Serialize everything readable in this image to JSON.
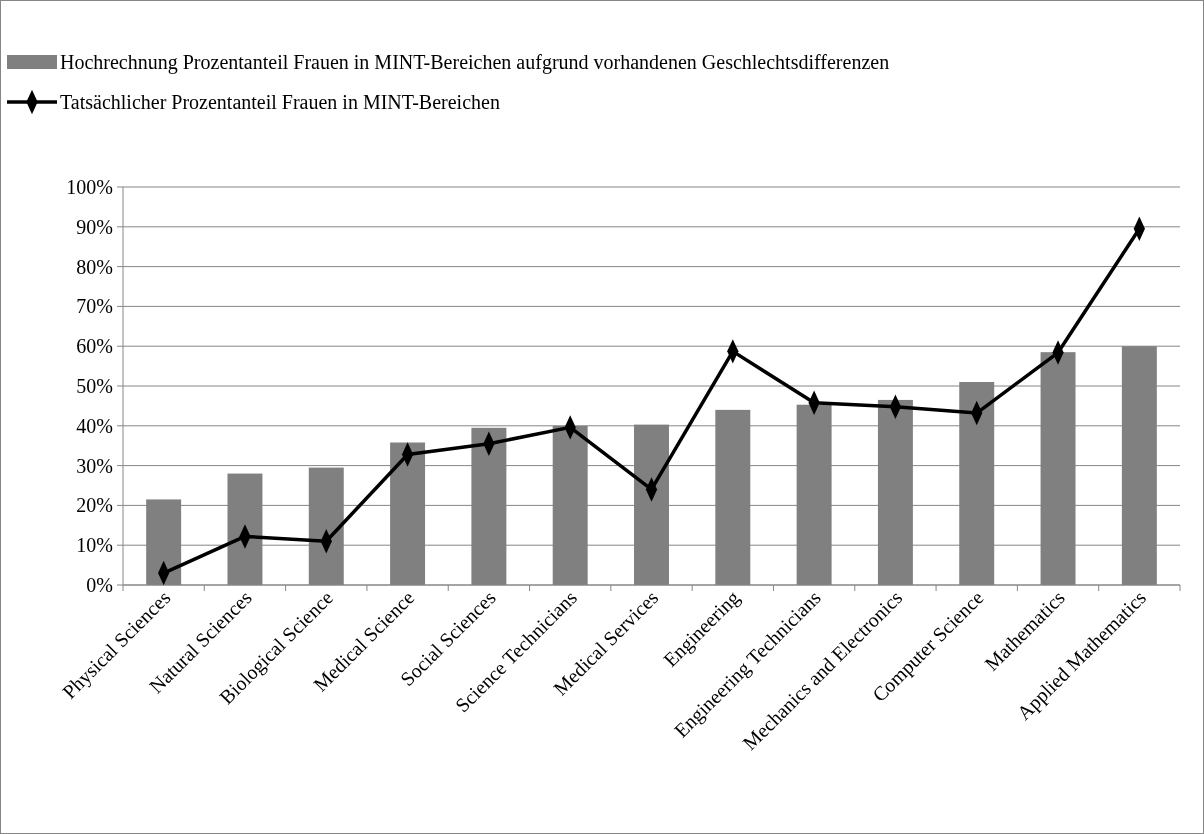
{
  "chart_data": {
    "type": "bar",
    "categories": [
      "Physical Sciences",
      "Natural Sciences",
      "Biological Science",
      "Medical Science",
      "Social Sciences",
      "Science Technicians",
      "Medical Services",
      "Engineering",
      "Engineering Technicians",
      "Mechanics and Electronics",
      "Computer Science",
      "Mathematics",
      "Applied Mathematics"
    ],
    "series": [
      {
        "name": "Hochrechnung Prozentanteil Frauen in MINT-Bereichen aufgrund vorhandenen Geschlechtsdifferenzen",
        "color": "#808080",
        "values": [
          21.5,
          28,
          29.5,
          35.8,
          39.5,
          40,
          40.3,
          44,
          45.3,
          46.5,
          51,
          58.5,
          60
        ]
      },
      {
        "name": "Tatsächlicher Prozentanteil Frauen in MINT-Bereichen",
        "type": "line",
        "color": "#000000",
        "marker": "diamond",
        "values": [
          3,
          12.2,
          11,
          32.8,
          35.5,
          39.6,
          24,
          58.7,
          45.8,
          44.8,
          43.2,
          58.4,
          89.5
        ]
      }
    ],
    "ylim": [
      0,
      100
    ],
    "yticks": [
      {
        "value": 0,
        "label": "0%"
      },
      {
        "value": 10,
        "label": "10%"
      },
      {
        "value": 20,
        "label": "20%"
      },
      {
        "value": 30,
        "label": "30%"
      },
      {
        "value": 40,
        "label": "40%"
      },
      {
        "value": 50,
        "label": "50%"
      },
      {
        "value": 60,
        "label": "60%"
      },
      {
        "value": 70,
        "label": "70%"
      },
      {
        "value": 80,
        "label": "80%"
      },
      {
        "value": 90,
        "label": "90%"
      },
      {
        "value": 100,
        "label": "100%"
      }
    ],
    "grid": "y",
    "legend": "top"
  }
}
